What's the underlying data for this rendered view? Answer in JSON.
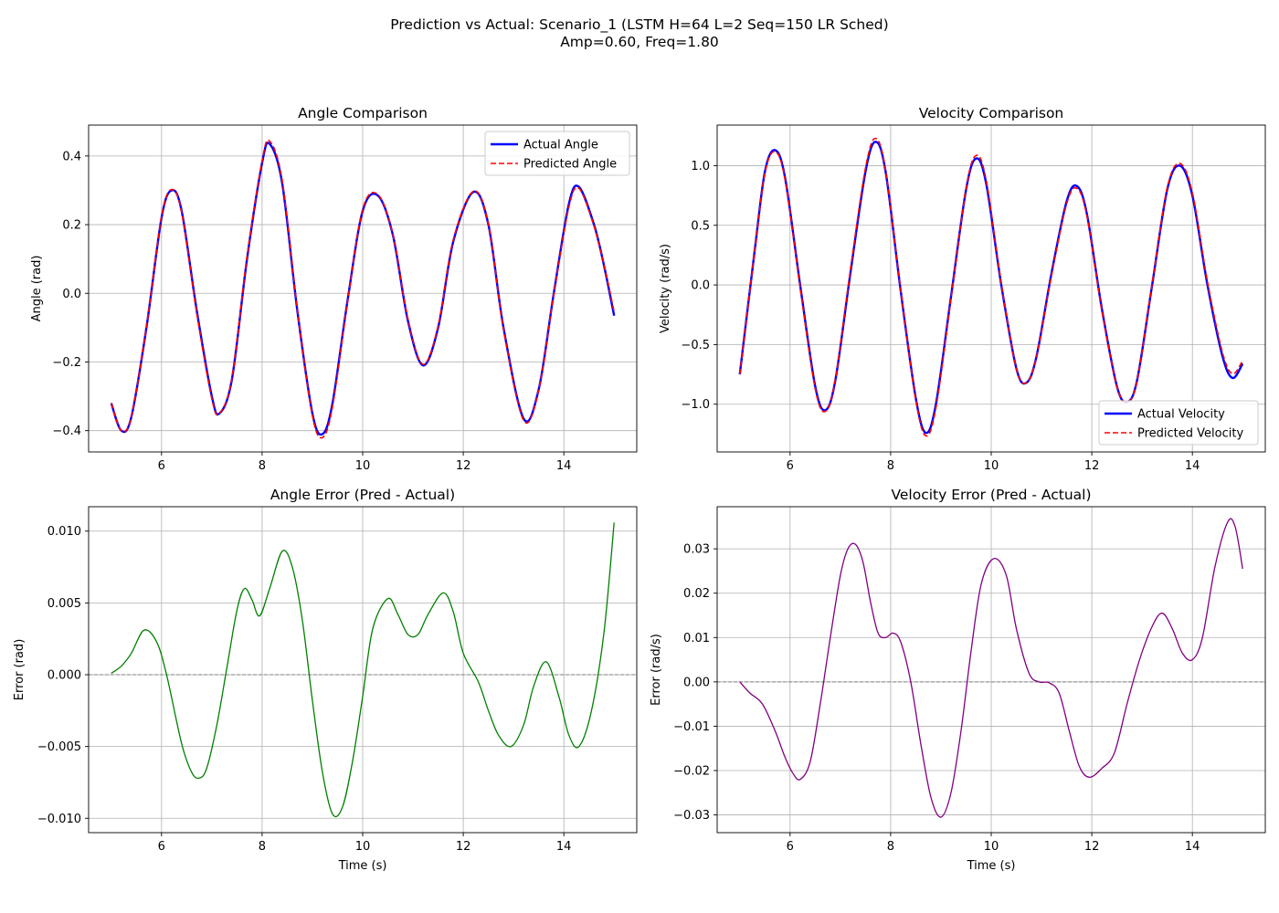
{
  "figure": {
    "suptitle_line1": "Prediction vs Actual: Scenario_1 (LSTM H=64 L=2 Seq=150 LR Sched)",
    "suptitle_line2": "Amp=0.60, Freq=1.80"
  },
  "colors": {
    "actual": "#0000ff",
    "predicted": "#ff0000",
    "angle_error": "#008000",
    "velocity_error": "#800080",
    "grid": "#b0b0b0",
    "zero_line": "#808080"
  },
  "chart_data": [
    {
      "id": "angle",
      "type": "line",
      "title": "Angle Comparison",
      "xlabel": "",
      "ylabel": "Angle (rad)",
      "xlim": [
        4.55,
        15.45
      ],
      "ylim": [
        -0.462,
        0.49
      ],
      "xticks": [
        6,
        8,
        10,
        12,
        14
      ],
      "yticks": [
        -0.4,
        -0.2,
        0.0,
        0.2,
        0.4
      ],
      "ytick_labels": [
        "−0.4",
        "−0.2",
        "0.0",
        "0.2",
        "0.4"
      ],
      "grid": true,
      "legend_position": "upper right",
      "series": [
        {
          "name": "Actual Angle",
          "style": "solid",
          "x": [
            5.0,
            5.2,
            5.4,
            5.7,
            6.0,
            6.2,
            6.4,
            6.7,
            7.0,
            7.15,
            7.4,
            7.7,
            8.0,
            8.15,
            8.4,
            8.7,
            9.0,
            9.2,
            9.4,
            9.7,
            10.0,
            10.3,
            10.6,
            10.9,
            11.2,
            11.5,
            11.8,
            12.2,
            12.5,
            12.8,
            13.2,
            13.5,
            13.8,
            14.1,
            14.3,
            14.6,
            14.8,
            15.0
          ],
          "y": [
            -0.32,
            -0.4,
            -0.36,
            -0.1,
            0.22,
            0.3,
            0.24,
            -0.05,
            -0.3,
            -0.35,
            -0.25,
            0.1,
            0.38,
            0.435,
            0.32,
            -0.05,
            -0.35,
            -0.41,
            -0.32,
            -0.02,
            0.24,
            0.285,
            0.17,
            -0.08,
            -0.21,
            -0.1,
            0.15,
            0.295,
            0.2,
            -0.1,
            -0.365,
            -0.28,
            0.0,
            0.26,
            0.31,
            0.2,
            0.08,
            -0.065
          ]
        },
        {
          "name": "Predicted Angle",
          "style": "dashed",
          "x": [
            5.0,
            5.2,
            5.4,
            5.7,
            6.0,
            6.2,
            6.4,
            6.7,
            7.0,
            7.15,
            7.4,
            7.7,
            8.0,
            8.15,
            8.4,
            8.7,
            9.0,
            9.2,
            9.4,
            9.7,
            10.0,
            10.3,
            10.6,
            10.9,
            11.2,
            11.5,
            11.8,
            12.2,
            12.5,
            12.8,
            13.2,
            13.5,
            13.8,
            14.1,
            14.3,
            14.6,
            14.8,
            15.0
          ],
          "y": [
            -0.32,
            -0.4,
            -0.358,
            -0.097,
            0.223,
            0.302,
            0.236,
            -0.057,
            -0.307,
            -0.35,
            -0.246,
            0.106,
            0.386,
            0.443,
            0.328,
            -0.046,
            -0.356,
            -0.42,
            -0.33,
            -0.024,
            0.245,
            0.288,
            0.172,
            -0.075,
            -0.207,
            -0.095,
            0.155,
            0.297,
            0.202,
            -0.104,
            -0.37,
            -0.281,
            -0.003,
            0.251,
            0.306,
            0.196,
            0.082,
            -0.054
          ]
        }
      ]
    },
    {
      "id": "velocity",
      "type": "line",
      "title": "Velocity Comparison",
      "xlabel": "",
      "ylabel": "Velocity (rad/s)",
      "xlim": [
        4.55,
        15.45
      ],
      "ylim": [
        -1.4,
        1.34
      ],
      "xticks": [
        6,
        8,
        10,
        12,
        14
      ],
      "yticks": [
        -1.0,
        -0.5,
        0.0,
        0.5,
        1.0
      ],
      "ytick_labels": [
        "−1.0",
        "−0.5",
        "0.0",
        "0.5",
        "1.0"
      ],
      "grid": true,
      "legend_position": "lower right",
      "series": [
        {
          "name": "Actual Velocity",
          "style": "solid",
          "x": [
            5.0,
            5.3,
            5.5,
            5.7,
            5.9,
            6.2,
            6.5,
            6.7,
            6.9,
            7.2,
            7.5,
            7.7,
            7.9,
            8.2,
            8.5,
            8.7,
            8.9,
            9.2,
            9.5,
            9.7,
            9.9,
            10.2,
            10.5,
            10.7,
            10.9,
            11.2,
            11.5,
            11.7,
            11.9,
            12.2,
            12.5,
            12.7,
            12.9,
            13.2,
            13.5,
            13.75,
            14.0,
            14.3,
            14.6,
            14.8,
            15.0
          ],
          "y": [
            -0.75,
            0.3,
            0.95,
            1.13,
            0.9,
            0.0,
            -0.85,
            -1.05,
            -0.8,
            0.1,
            0.95,
            1.2,
            0.95,
            -0.05,
            -0.95,
            -1.24,
            -1.0,
            -0.1,
            0.8,
            1.06,
            0.85,
            0.0,
            -0.7,
            -0.82,
            -0.6,
            0.1,
            0.7,
            0.83,
            0.6,
            -0.2,
            -0.85,
            -0.98,
            -0.8,
            0.0,
            0.8,
            1.0,
            0.75,
            0.0,
            -0.6,
            -0.78,
            -0.66
          ]
        },
        {
          "name": "Predicted Velocity",
          "style": "dashed",
          "x": [
            5.0,
            5.3,
            5.5,
            5.7,
            5.9,
            6.2,
            6.5,
            6.7,
            6.9,
            7.2,
            7.5,
            7.7,
            7.9,
            8.2,
            8.5,
            8.7,
            8.9,
            9.2,
            9.5,
            9.7,
            9.9,
            10.2,
            10.5,
            10.7,
            10.9,
            11.2,
            11.5,
            11.7,
            11.9,
            12.2,
            12.5,
            12.7,
            12.9,
            13.2,
            13.5,
            13.75,
            14.0,
            14.3,
            14.6,
            14.8,
            15.0
          ],
          "y": [
            -0.75,
            0.295,
            0.94,
            1.117,
            0.886,
            -0.02,
            -0.87,
            -1.06,
            -0.79,
            0.128,
            0.98,
            1.228,
            0.96,
            -0.04,
            -0.965,
            -1.265,
            -1.03,
            -0.115,
            0.81,
            1.085,
            0.878,
            0.012,
            -0.7,
            -0.82,
            -0.605,
            0.083,
            0.68,
            0.81,
            0.585,
            -0.214,
            -0.85,
            -0.984,
            -0.8,
            0.011,
            0.814,
            1.018,
            0.772,
            0.026,
            -0.57,
            -0.745,
            -0.635
          ]
        }
      ]
    },
    {
      "id": "angle_error",
      "type": "line",
      "title": "Angle Error (Pred - Actual)",
      "xlabel": "Time (s)",
      "ylabel": "Error (rad)",
      "xlim": [
        4.55,
        15.45
      ],
      "ylim": [
        -0.011,
        0.0117
      ],
      "xticks": [
        6,
        8,
        10,
        12,
        14
      ],
      "yticks": [
        -0.01,
        -0.005,
        0.0,
        0.005,
        0.01
      ],
      "ytick_labels": [
        "−0.010",
        "−0.005",
        "0.000",
        "0.005",
        "0.010"
      ],
      "grid": true,
      "zero_line": true,
      "series": [
        {
          "name": "Angle Error",
          "style": "solid",
          "x": [
            5.0,
            5.2,
            5.4,
            5.65,
            5.9,
            6.1,
            6.4,
            6.6,
            6.75,
            6.9,
            7.1,
            7.3,
            7.5,
            7.65,
            7.8,
            7.95,
            8.15,
            8.4,
            8.6,
            8.8,
            9.0,
            9.2,
            9.4,
            9.6,
            9.8,
            10.0,
            10.2,
            10.5,
            10.7,
            10.9,
            11.1,
            11.3,
            11.6,
            11.8,
            12.0,
            12.3,
            12.5,
            12.7,
            12.95,
            13.2,
            13.4,
            13.65,
            13.9,
            14.1,
            14.3,
            14.55,
            14.8,
            15.0
          ],
          "y": [
            0.0001,
            0.0006,
            0.0015,
            0.0031,
            0.0023,
            0.0,
            -0.0048,
            -0.0068,
            -0.0072,
            -0.0065,
            -0.0035,
            0.0005,
            0.0045,
            0.006,
            0.0052,
            0.0041,
            0.006,
            0.0086,
            0.0075,
            0.0038,
            -0.0018,
            -0.0068,
            -0.0097,
            -0.0092,
            -0.006,
            -0.0015,
            0.0032,
            0.0053,
            0.0042,
            0.0028,
            0.0028,
            0.0042,
            0.0057,
            0.0044,
            0.0015,
            -0.0005,
            -0.0025,
            -0.0042,
            -0.005,
            -0.0035,
            -0.0008,
            0.0009,
            -0.0015,
            -0.0042,
            -0.005,
            -0.0025,
            0.003,
            0.0106
          ]
        }
      ]
    },
    {
      "id": "velocity_error",
      "type": "line",
      "title": "Velocity Error (Pred - Actual)",
      "xlabel": "Time (s)",
      "ylabel": "Error (rad/s)",
      "xlim": [
        4.55,
        15.45
      ],
      "ylim": [
        -0.034,
        0.0395
      ],
      "xticks": [
        6,
        8,
        10,
        12,
        14
      ],
      "yticks": [
        -0.03,
        -0.02,
        -0.01,
        0.0,
        0.01,
        0.02,
        0.03
      ],
      "ytick_labels": [
        "−0.03",
        "−0.02",
        "−0.01",
        "0.00",
        "0.01",
        "0.02",
        "0.03"
      ],
      "grid": true,
      "zero_line": true,
      "series": [
        {
          "name": "Velocity Error",
          "style": "solid",
          "x": [
            5.0,
            5.2,
            5.45,
            5.7,
            5.9,
            6.05,
            6.2,
            6.4,
            6.6,
            6.8,
            7.0,
            7.15,
            7.3,
            7.45,
            7.6,
            7.75,
            7.9,
            8.05,
            8.2,
            8.4,
            8.6,
            8.8,
            9.0,
            9.2,
            9.4,
            9.6,
            9.8,
            10.05,
            10.3,
            10.5,
            10.75,
            10.95,
            11.15,
            11.35,
            11.55,
            11.75,
            11.95,
            12.2,
            12.45,
            12.7,
            12.95,
            13.2,
            13.4,
            13.6,
            13.8,
            14.0,
            14.2,
            14.45,
            14.7,
            14.85,
            15.0
          ],
          "y": [
            0.0,
            -0.0025,
            -0.005,
            -0.011,
            -0.017,
            -0.0205,
            -0.022,
            -0.018,
            -0.005,
            0.01,
            0.024,
            0.03,
            0.031,
            0.027,
            0.018,
            0.011,
            0.01,
            0.011,
            0.009,
            0.0,
            -0.014,
            -0.026,
            -0.0305,
            -0.025,
            -0.011,
            0.007,
            0.022,
            0.0278,
            0.024,
            0.012,
            0.002,
            0.0,
            -0.0002,
            -0.0025,
            -0.011,
            -0.019,
            -0.0215,
            -0.0195,
            -0.016,
            -0.005,
            0.005,
            0.0125,
            0.0155,
            0.012,
            0.0065,
            0.005,
            0.01,
            0.026,
            0.036,
            0.035,
            0.0255
          ]
        }
      ]
    }
  ]
}
